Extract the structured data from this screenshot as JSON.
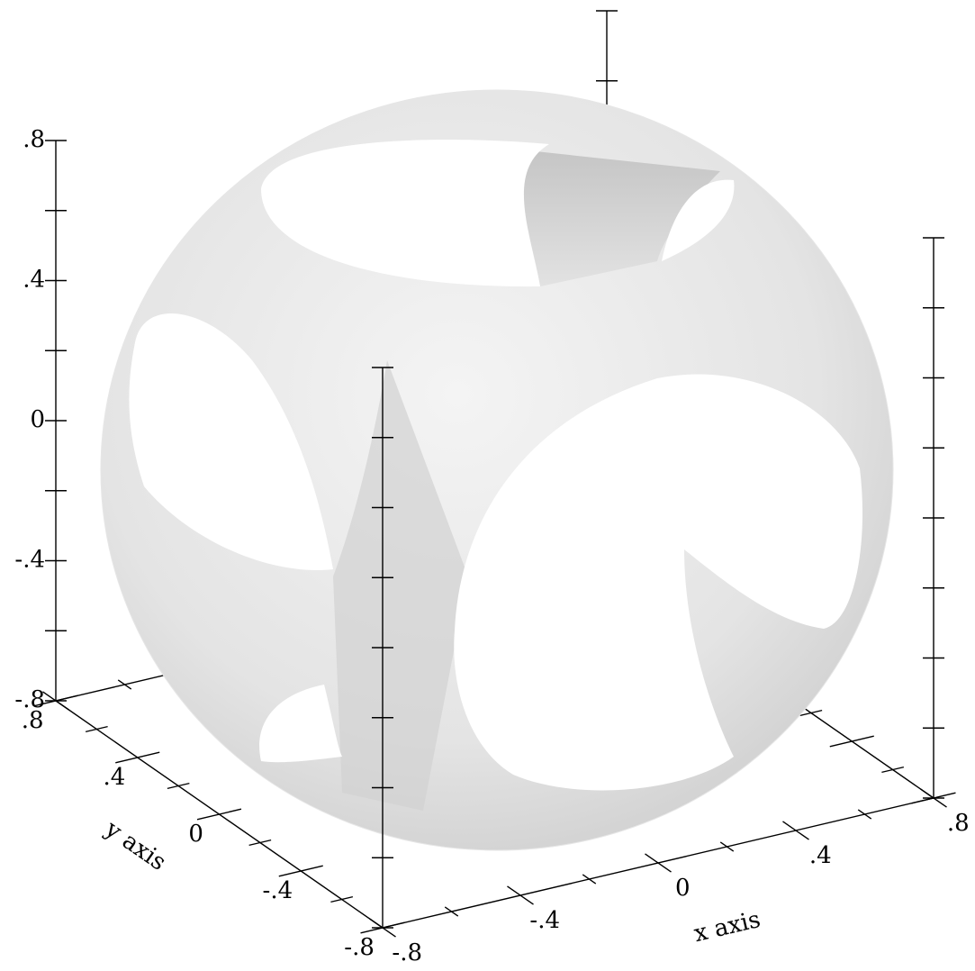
{
  "chart_data": {
    "type": "surface3d",
    "x_label": "x axis",
    "y_label": "y axis",
    "xlim": [
      -0.8,
      0.8
    ],
    "ylim": [
      -0.8,
      0.8
    ],
    "zlim": [
      -0.8,
      0.8
    ],
    "xticks": [
      {
        "value": -0.8,
        "label": "-.8"
      },
      {
        "value": -0.4,
        "label": "-.4"
      },
      0,
      {
        "value": 0.4,
        "label": ".4"
      },
      {
        "value": 0.8,
        "label": ".8"
      }
    ],
    "yticks": [
      {
        "value": -0.8,
        "label": "-.8"
      },
      {
        "value": -0.4,
        "label": "-.4"
      },
      0,
      {
        "value": 0.4,
        "label": ".4"
      },
      {
        "value": 0.8,
        "label": ".8"
      }
    ],
    "zticks": [
      {
        "value": -0.8,
        "label": "-.8"
      },
      {
        "value": -0.4,
        "label": "-.4"
      },
      0,
      {
        "value": 0.4,
        "label": ".4"
      },
      {
        "value": 0.8,
        "label": ".8"
      }
    ],
    "xminorticks": [
      -0.6,
      -0.2,
      0.2,
      0.6
    ],
    "yminorticks": [
      -0.6,
      -0.2,
      0.2,
      0.6
    ],
    "zminorticks": [
      -0.6,
      -0.2,
      0.2,
      0.6
    ],
    "color": "#e6e6e6"
  }
}
